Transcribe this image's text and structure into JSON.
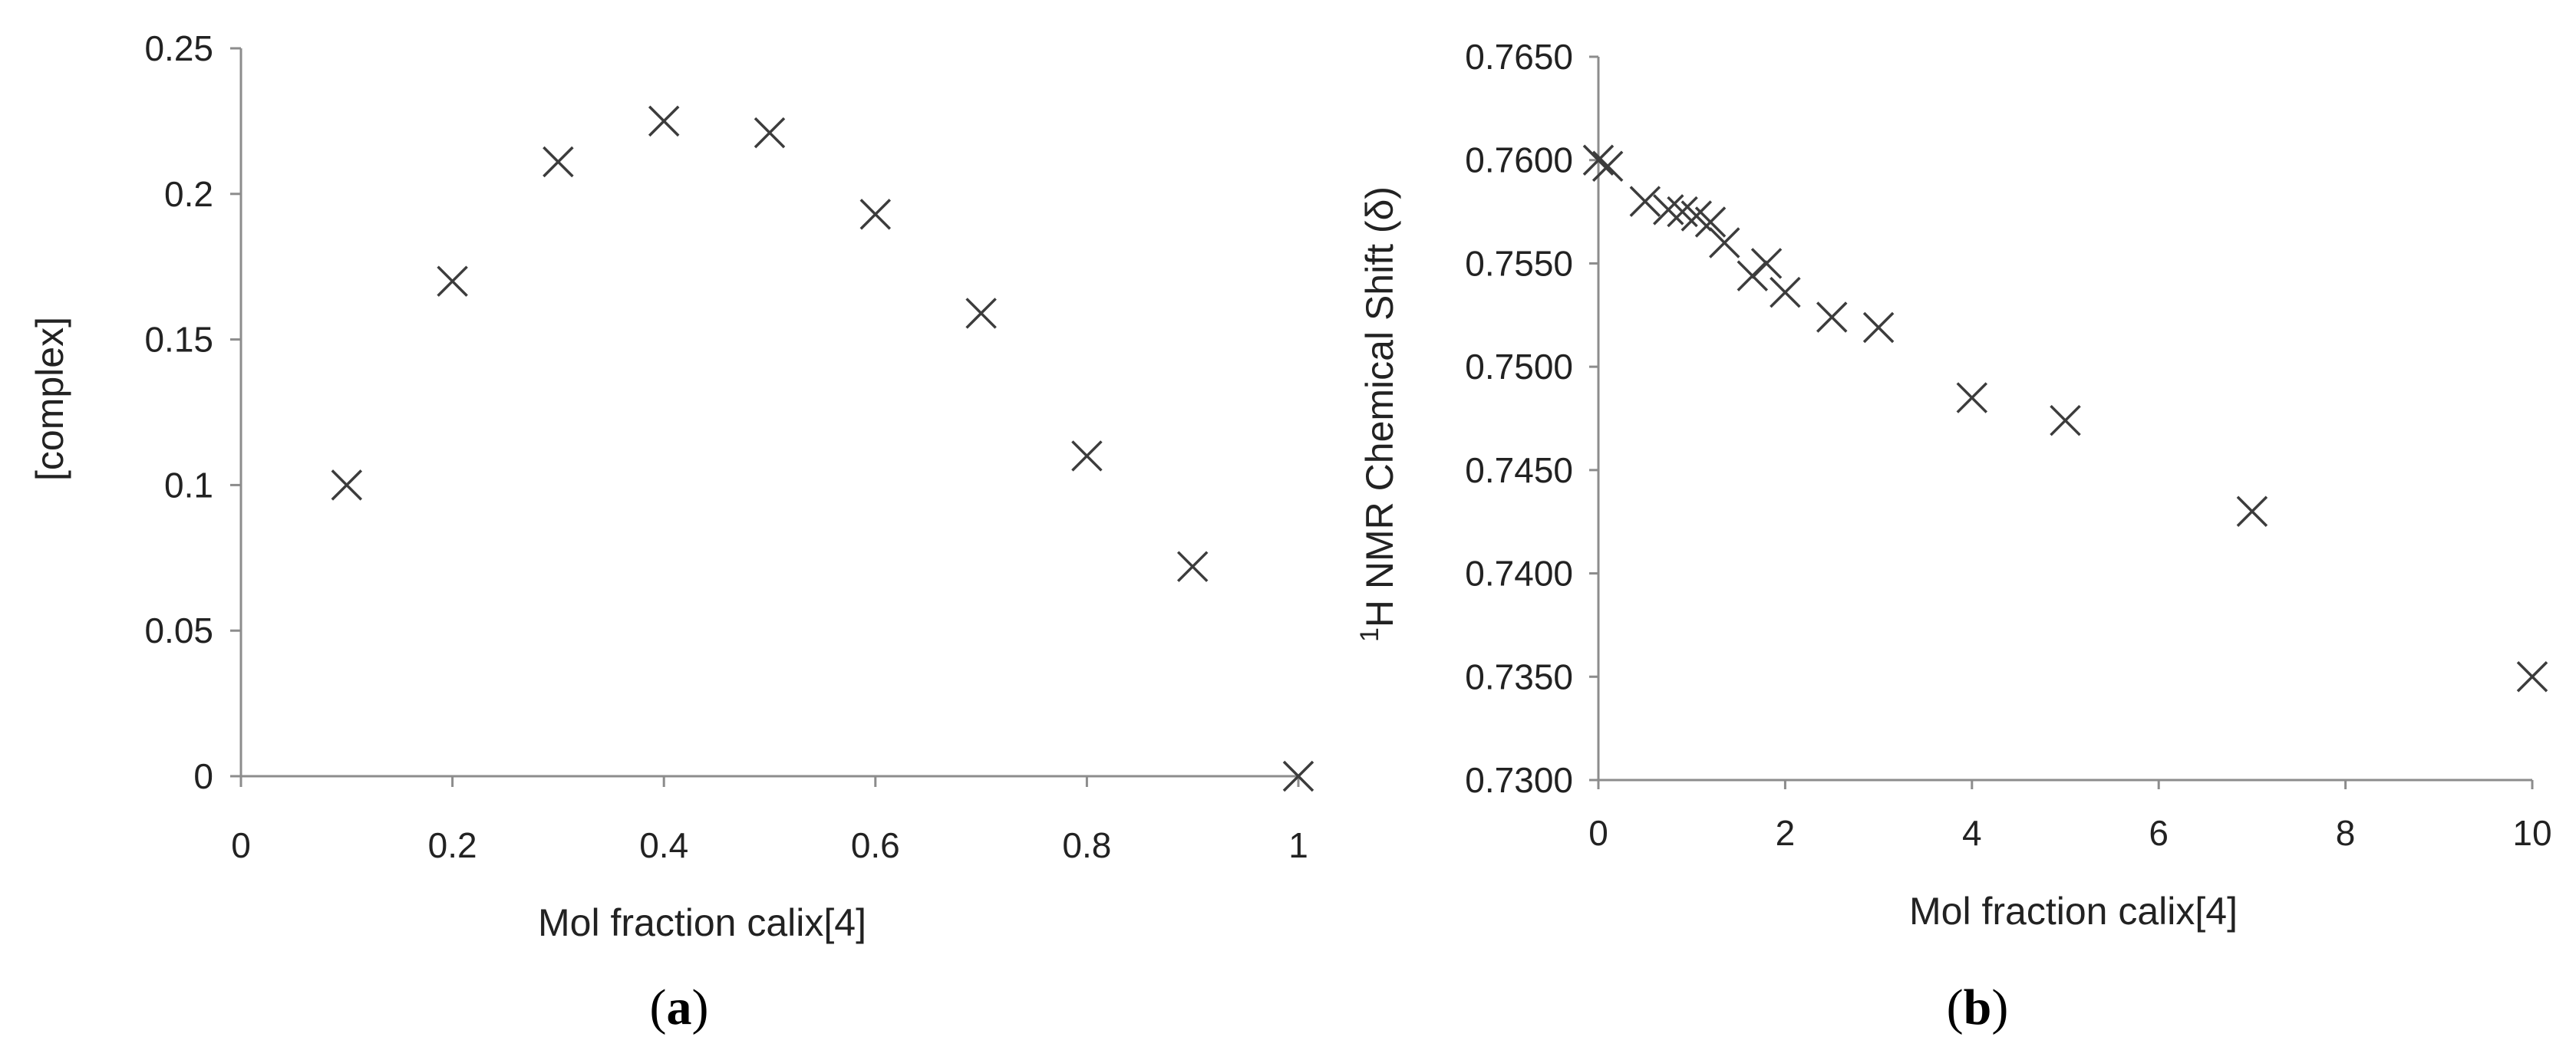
{
  "chart_data": [
    {
      "type": "scatter",
      "panel_label": {
        "open": "(",
        "letter": "a",
        "close": ")"
      },
      "xlabel": "Mol fraction calix[4]",
      "ylabel": "[complex]",
      "xlim": [
        0,
        1
      ],
      "ylim": [
        0,
        0.25
      ],
      "x_ticks": [
        "0",
        "0.2",
        "0.4",
        "0.6",
        "0.8",
        "1"
      ],
      "y_ticks": [
        "0",
        "0.05",
        "0.1",
        "0.15",
        "0.2",
        "0.25"
      ],
      "marker": "x",
      "grid": false,
      "legend": "none",
      "colors": {
        "marker": "#3c3c3c",
        "axis": "#8c8c8c"
      },
      "points": [
        {
          "x": 0.1,
          "y": 0.1
        },
        {
          "x": 0.2,
          "y": 0.17
        },
        {
          "x": 0.3,
          "y": 0.211
        },
        {
          "x": 0.4,
          "y": 0.225
        },
        {
          "x": 0.5,
          "y": 0.221
        },
        {
          "x": 0.6,
          "y": 0.193
        },
        {
          "x": 0.7,
          "y": 0.159
        },
        {
          "x": 0.8,
          "y": 0.11
        },
        {
          "x": 0.9,
          "y": 0.072
        },
        {
          "x": 1.0,
          "y": 0.0
        }
      ]
    },
    {
      "type": "scatter",
      "panel_label": {
        "open": "(",
        "letter": "b",
        "close": ")"
      },
      "xlabel": "Mol fraction calix[4]",
      "ylabel": "H NMR Chemical Shift (δ)",
      "ylabel_superscript": "1",
      "xlim": [
        0,
        10
      ],
      "ylim": [
        0.73,
        0.765
      ],
      "x_ticks": [
        "0",
        "2",
        "4",
        "6",
        "8",
        "10"
      ],
      "y_ticks": [
        "0.7300",
        "0.7350",
        "0.7400",
        "0.7450",
        "0.7500",
        "0.7550",
        "0.7600",
        "0.7650"
      ],
      "marker": "x",
      "grid": false,
      "legend": "none",
      "colors": {
        "marker": "#3c3c3c",
        "axis": "#8c8c8c"
      },
      "points": [
        {
          "x": 0.0,
          "y": 0.76
        },
        {
          "x": 0.1,
          "y": 0.7597
        },
        {
          "x": 0.5,
          "y": 0.758
        },
        {
          "x": 0.75,
          "y": 0.7576
        },
        {
          "x": 0.9,
          "y": 0.7575
        },
        {
          "x": 1.05,
          "y": 0.7573
        },
        {
          "x": 1.2,
          "y": 0.757
        },
        {
          "x": 1.35,
          "y": 0.756
        },
        {
          "x": 1.65,
          "y": 0.7544
        },
        {
          "x": 1.8,
          "y": 0.755
        },
        {
          "x": 2.0,
          "y": 0.7536
        },
        {
          "x": 2.5,
          "y": 0.7524
        },
        {
          "x": 3.0,
          "y": 0.7519
        },
        {
          "x": 4.0,
          "y": 0.7485
        },
        {
          "x": 5.0,
          "y": 0.7474
        },
        {
          "x": 7.0,
          "y": 0.743
        },
        {
          "x": 10.0,
          "y": 0.735
        }
      ]
    }
  ]
}
